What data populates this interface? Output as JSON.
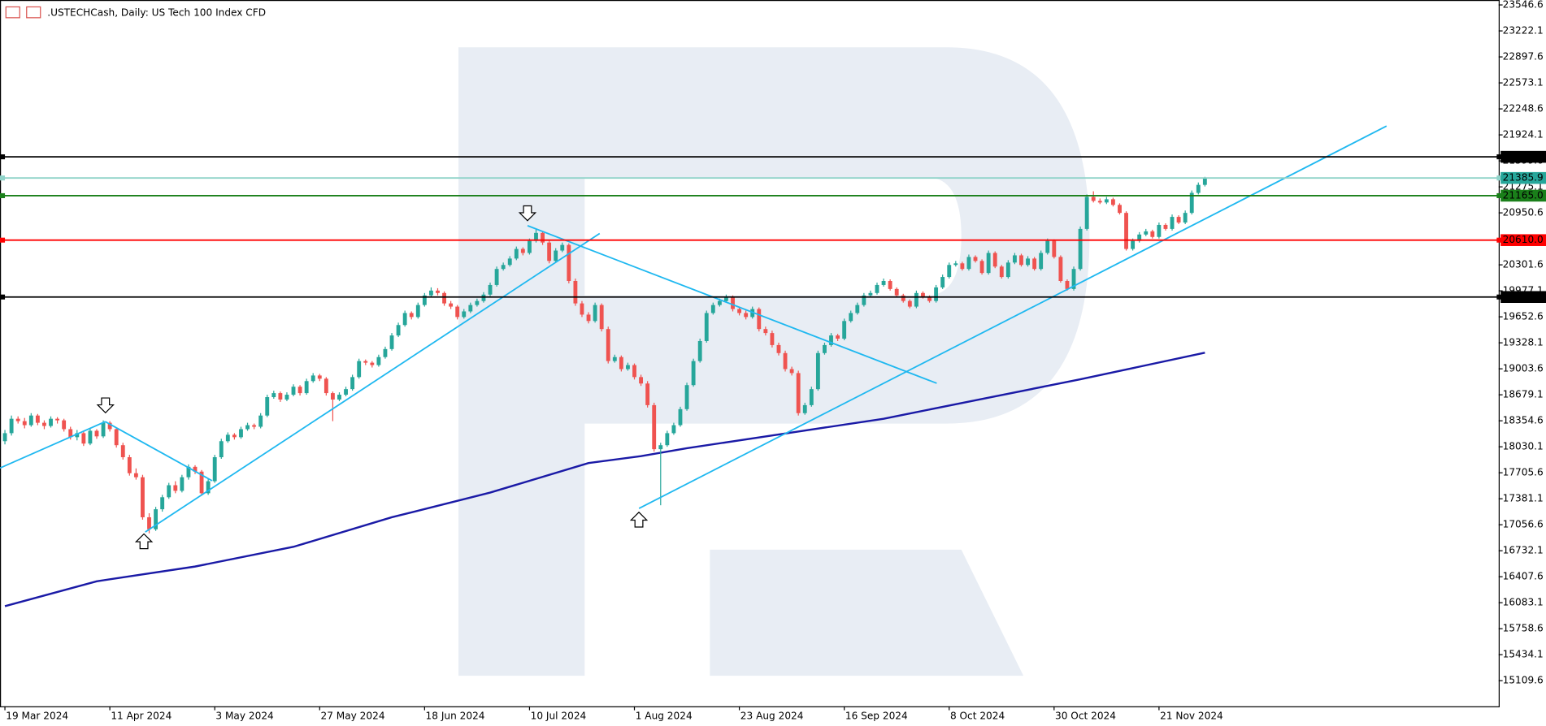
{
  "chart_data": {
    "type": "candlestick",
    "title": ".USTECHCash, Daily:  US Tech 100 Index CFD",
    "up_color": "#26a69a",
    "down_color": "#ef5350",
    "xlim": [
      -0.75,
      227.8
    ],
    "ylim": [
      14790,
      23608
    ],
    "yticks": [
      23546.6,
      23222.1,
      22897.6,
      22573.1,
      22248.6,
      21924.1,
      21599.6,
      21275.1,
      20950.6,
      20626.1,
      20301.6,
      19977.1,
      19652.6,
      19328.1,
      19003.6,
      18679.1,
      18354.6,
      18030.1,
      17705.6,
      17381.1,
      17056.6,
      16732.1,
      16407.6,
      16083.1,
      15758.6,
      15434.1,
      15109.6
    ],
    "xticks": [
      {
        "value": 0,
        "label": "19 Mar 2024"
      },
      {
        "value": 16,
        "label": "11 Apr 2024"
      },
      {
        "value": 32,
        "label": "3 May 2024"
      },
      {
        "value": 48,
        "label": "27 May 2024"
      },
      {
        "value": 64,
        "label": "18 Jun 2024"
      },
      {
        "value": 80,
        "label": "10 Jul 2024"
      },
      {
        "value": 96,
        "label": "1 Aug 2024"
      },
      {
        "value": 112,
        "label": "23 Aug 2024"
      },
      {
        "value": 128,
        "label": "16 Sep 2024"
      },
      {
        "value": 144,
        "label": "8 Oct 2024"
      },
      {
        "value": 160,
        "label": "30 Oct 2024"
      },
      {
        "value": 176,
        "label": "21 Nov 2024"
      }
    ],
    "candles": [
      [
        18100,
        18240,
        18060,
        18200
      ],
      [
        18200,
        18420,
        18170,
        18380
      ],
      [
        18380,
        18410,
        18320,
        18350
      ],
      [
        18350,
        18390,
        18260,
        18300
      ],
      [
        18300,
        18450,
        18280,
        18420
      ],
      [
        18420,
        18440,
        18300,
        18330
      ],
      [
        18330,
        18360,
        18250,
        18290
      ],
      [
        18290,
        18410,
        18270,
        18380
      ],
      [
        18380,
        18400,
        18320,
        18360
      ],
      [
        18360,
        18380,
        18220,
        18250
      ],
      [
        18250,
        18280,
        18120,
        18150
      ],
      [
        18150,
        18240,
        18110,
        18200
      ],
      [
        18200,
        18230,
        18040,
        18070
      ],
      [
        18070,
        18260,
        18050,
        18230
      ],
      [
        18230,
        18250,
        18130,
        18160
      ],
      [
        18160,
        18360,
        18140,
        18330
      ],
      [
        18330,
        18350,
        18220,
        18250
      ],
      [
        18250,
        18270,
        18020,
        18050
      ],
      [
        18050,
        18080,
        17870,
        17900
      ],
      [
        17900,
        17930,
        17670,
        17700
      ],
      [
        17700,
        17760,
        17620,
        17650
      ],
      [
        17650,
        17680,
        17120,
        17150
      ],
      [
        17150,
        17200,
        16950,
        17000
      ],
      [
        17000,
        17280,
        16980,
        17250
      ],
      [
        17250,
        17430,
        17220,
        17400
      ],
      [
        17400,
        17580,
        17380,
        17550
      ],
      [
        17550,
        17600,
        17450,
        17480
      ],
      [
        17480,
        17680,
        17460,
        17650
      ],
      [
        17650,
        17810,
        17620,
        17780
      ],
      [
        17780,
        17800,
        17690,
        17720
      ],
      [
        17720,
        17740,
        17420,
        17450
      ],
      [
        17450,
        17630,
        17430,
        17600
      ],
      [
        17600,
        17930,
        17580,
        17900
      ],
      [
        17900,
        18130,
        17880,
        18100
      ],
      [
        18100,
        18210,
        18080,
        18180
      ],
      [
        18180,
        18200,
        18120,
        18150
      ],
      [
        18150,
        18280,
        18130,
        18250
      ],
      [
        18250,
        18330,
        18230,
        18300
      ],
      [
        18300,
        18320,
        18250,
        18280
      ],
      [
        18280,
        18450,
        18260,
        18420
      ],
      [
        18420,
        18680,
        18400,
        18650
      ],
      [
        18650,
        18730,
        18630,
        18700
      ],
      [
        18700,
        18720,
        18590,
        18620
      ],
      [
        18620,
        18710,
        18600,
        18680
      ],
      [
        18680,
        18810,
        18660,
        18780
      ],
      [
        18780,
        18800,
        18670,
        18700
      ],
      [
        18700,
        18880,
        18680,
        18850
      ],
      [
        18850,
        18950,
        18830,
        18920
      ],
      [
        18920,
        18940,
        18850,
        18880
      ],
      [
        18880,
        18900,
        18670,
        18700
      ],
      [
        18700,
        18720,
        18350,
        18620
      ],
      [
        18620,
        18710,
        18600,
        18680
      ],
      [
        18680,
        18780,
        18660,
        18750
      ],
      [
        18750,
        18930,
        18730,
        18900
      ],
      [
        18900,
        19130,
        18880,
        19100
      ],
      [
        19100,
        19120,
        19050,
        19080
      ],
      [
        19080,
        19100,
        19020,
        19050
      ],
      [
        19050,
        19180,
        19030,
        19150
      ],
      [
        19150,
        19280,
        19130,
        19250
      ],
      [
        19250,
        19450,
        19230,
        19420
      ],
      [
        19420,
        19580,
        19400,
        19550
      ],
      [
        19550,
        19730,
        19530,
        19700
      ],
      [
        19700,
        19720,
        19620,
        19650
      ],
      [
        19650,
        19830,
        19630,
        19800
      ],
      [
        19800,
        19950,
        19780,
        19920
      ],
      [
        19920,
        20020,
        19900,
        19980
      ],
      [
        19980,
        20010,
        19920,
        19950
      ],
      [
        19950,
        19970,
        19790,
        19820
      ],
      [
        19820,
        19850,
        19750,
        19780
      ],
      [
        19780,
        19800,
        19620,
        19650
      ],
      [
        19650,
        19750,
        19630,
        19720
      ],
      [
        19720,
        19830,
        19700,
        19800
      ],
      [
        19800,
        19880,
        19780,
        19850
      ],
      [
        19850,
        19960,
        19830,
        19930
      ],
      [
        19930,
        20080,
        19910,
        20050
      ],
      [
        20050,
        20280,
        20030,
        20250
      ],
      [
        20250,
        20330,
        20230,
        20300
      ],
      [
        20300,
        20410,
        20280,
        20380
      ],
      [
        20380,
        20530,
        20360,
        20500
      ],
      [
        20500,
        20520,
        20420,
        20450
      ],
      [
        20450,
        20630,
        20430,
        20600
      ],
      [
        20600,
        20750,
        20580,
        20700
      ],
      [
        20700,
        20720,
        20550,
        20580
      ],
      [
        20580,
        20600,
        20320,
        20350
      ],
      [
        20350,
        20510,
        20330,
        20480
      ],
      [
        20480,
        20580,
        20460,
        20550
      ],
      [
        20550,
        20570,
        20070,
        20100
      ],
      [
        20100,
        20130,
        19790,
        19820
      ],
      [
        19820,
        19850,
        19650,
        19680
      ],
      [
        19680,
        19710,
        19570,
        19600
      ],
      [
        19600,
        19830,
        19580,
        19800
      ],
      [
        19800,
        19820,
        19470,
        19500
      ],
      [
        19500,
        19530,
        19070,
        19100
      ],
      [
        19100,
        19180,
        19080,
        19150
      ],
      [
        19150,
        19170,
        18970,
        19000
      ],
      [
        19000,
        19080,
        18980,
        19050
      ],
      [
        19050,
        19070,
        18870,
        18900
      ],
      [
        18900,
        18930,
        18790,
        18820
      ],
      [
        18820,
        18850,
        18520,
        18550
      ],
      [
        18550,
        18580,
        17970,
        18000
      ],
      [
        18000,
        18080,
        17300,
        18050
      ],
      [
        18050,
        18230,
        18030,
        18200
      ],
      [
        18200,
        18330,
        18180,
        18300
      ],
      [
        18300,
        18530,
        18280,
        18500
      ],
      [
        18500,
        18830,
        18480,
        18800
      ],
      [
        18800,
        19130,
        18780,
        19100
      ],
      [
        19100,
        19380,
        19080,
        19350
      ],
      [
        19350,
        19730,
        19330,
        19700
      ],
      [
        19700,
        19830,
        19680,
        19800
      ],
      [
        19800,
        19880,
        19780,
        19850
      ],
      [
        19850,
        19930,
        19830,
        19900
      ],
      [
        19900,
        19920,
        19720,
        19750
      ],
      [
        19750,
        19780,
        19670,
        19700
      ],
      [
        19700,
        19730,
        19620,
        19650
      ],
      [
        19650,
        19780,
        19630,
        19750
      ],
      [
        19750,
        19770,
        19470,
        19500
      ],
      [
        19500,
        19530,
        19420,
        19450
      ],
      [
        19450,
        19480,
        19270,
        19300
      ],
      [
        19300,
        19330,
        19170,
        19200
      ],
      [
        19200,
        19230,
        18970,
        19000
      ],
      [
        19000,
        19030,
        18920,
        18950
      ],
      [
        18950,
        18980,
        18420,
        18450
      ],
      [
        18450,
        18580,
        18430,
        18550
      ],
      [
        18550,
        18780,
        18530,
        18750
      ],
      [
        18750,
        19230,
        18730,
        19200
      ],
      [
        19200,
        19330,
        19180,
        19300
      ],
      [
        19300,
        19450,
        19280,
        19420
      ],
      [
        19420,
        19440,
        19350,
        19380
      ],
      [
        19380,
        19630,
        19360,
        19600
      ],
      [
        19600,
        19730,
        19580,
        19700
      ],
      [
        19700,
        19830,
        19680,
        19800
      ],
      [
        19800,
        19950,
        19780,
        19920
      ],
      [
        19920,
        19980,
        19900,
        19950
      ],
      [
        19950,
        20080,
        19930,
        20050
      ],
      [
        20050,
        20130,
        20030,
        20100
      ],
      [
        20100,
        20120,
        19980,
        20000
      ],
      [
        20000,
        20020,
        19900,
        19920
      ],
      [
        19920,
        19940,
        19830,
        19850
      ],
      [
        19850,
        19870,
        19760,
        19780
      ],
      [
        19780,
        19980,
        19760,
        19950
      ],
      [
        19950,
        19970,
        19880,
        19900
      ],
      [
        19900,
        19920,
        19830,
        19850
      ],
      [
        19850,
        20050,
        19830,
        20020
      ],
      [
        20020,
        20180,
        20000,
        20150
      ],
      [
        20150,
        20330,
        20130,
        20300
      ],
      [
        20300,
        20350,
        20280,
        20320
      ],
      [
        20320,
        20340,
        20230,
        20250
      ],
      [
        20250,
        20430,
        20230,
        20400
      ],
      [
        20400,
        20420,
        20330,
        20350
      ],
      [
        20350,
        20370,
        20180,
        20200
      ],
      [
        20200,
        20480,
        20180,
        20450
      ],
      [
        20450,
        20470,
        20260,
        20280
      ],
      [
        20280,
        20300,
        20130,
        20150
      ],
      [
        20150,
        20360,
        20130,
        20330
      ],
      [
        20330,
        20450,
        20310,
        20420
      ],
      [
        20420,
        20440,
        20280,
        20300
      ],
      [
        20300,
        20410,
        20280,
        20380
      ],
      [
        20380,
        20400,
        20230,
        20250
      ],
      [
        20250,
        20480,
        20230,
        20450
      ],
      [
        20450,
        20630,
        20430,
        20600
      ],
      [
        20600,
        20620,
        20380,
        20400
      ],
      [
        20400,
        20420,
        20080,
        20100
      ],
      [
        20100,
        20120,
        19980,
        20000
      ],
      [
        20000,
        20280,
        19980,
        20250
      ],
      [
        20250,
        20780,
        20230,
        20750
      ],
      [
        20750,
        21180,
        20730,
        21150
      ],
      [
        21150,
        21220,
        21080,
        21100
      ],
      [
        21100,
        21130,
        21060,
        21080
      ],
      [
        21080,
        21150,
        21060,
        21120
      ],
      [
        21120,
        21140,
        21030,
        21050
      ],
      [
        21050,
        21070,
        20930,
        20950
      ],
      [
        20950,
        20970,
        20480,
        20500
      ],
      [
        20500,
        20630,
        20480,
        20600
      ],
      [
        20600,
        20710,
        20580,
        20680
      ],
      [
        20680,
        20750,
        20660,
        20720
      ],
      [
        20720,
        20740,
        20630,
        20650
      ],
      [
        20650,
        20830,
        20630,
        20800
      ],
      [
        20800,
        20820,
        20730,
        20750
      ],
      [
        20750,
        20930,
        20730,
        20900
      ],
      [
        20900,
        20920,
        20810,
        20830
      ],
      [
        20830,
        20980,
        20810,
        20950
      ],
      [
        20950,
        21230,
        20930,
        21200
      ],
      [
        21200,
        21330,
        21180,
        21300
      ],
      [
        21300,
        21400,
        21280,
        21380
      ]
    ],
    "moving_average": {
      "color": "#1a1aa6",
      "x": [
        0,
        14,
        29,
        44,
        59,
        74,
        89,
        97,
        104,
        119,
        134,
        149,
        164,
        183
      ],
      "values": [
        16040,
        16351,
        16535,
        16781,
        17150,
        17458,
        17827,
        17913,
        18012,
        18196,
        18380,
        18627,
        18872,
        19205
      ]
    },
    "trendlines": {
      "color": "#1fb8f0",
      "lines": [
        {
          "x": [
            -0.75,
            15.3
          ],
          "y": [
            17765,
            18344
          ]
        },
        {
          "x": [
            15.3,
            31.6
          ],
          "y": [
            18344,
            17606
          ]
        },
        {
          "x": [
            21.4,
            90.7
          ],
          "y": [
            16966,
            20693
          ]
        },
        {
          "x": [
            79.7,
            142.1
          ],
          "y": [
            20791,
            18823
          ]
        },
        {
          "x": [
            96.7,
            210.7
          ],
          "y": [
            17261,
            22034
          ]
        }
      ]
    },
    "levels": [
      {
        "value": 21650,
        "label": "21650.0",
        "color": "#000000",
        "text_color": "#ffffff",
        "line_color": "#000000"
      },
      {
        "value": 21385.9,
        "label": "21385.9",
        "color": "#26a69a",
        "text_color": "#ffffff",
        "line_color": "#8fd3c9"
      },
      {
        "value": 21165,
        "label": "21165.0",
        "color": "#1a7f1a",
        "text_color": "#ffffff",
        "line_color": "#1a7f1a"
      },
      {
        "value": 20610,
        "label": "20610.0",
        "color": "#ff0000",
        "text_color": "#ffffff",
        "line_color": "#ff0000"
      },
      {
        "value": 19900,
        "label": "19900.0",
        "color": "#000000",
        "text_color": "#ffffff",
        "line_color": "#000000"
      }
    ]
  }
}
